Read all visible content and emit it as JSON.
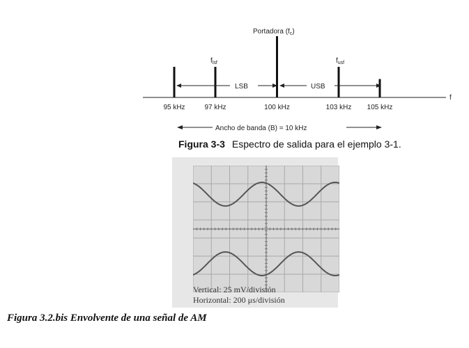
{
  "spectrum": {
    "carrier_label": "Portadora (f",
    "carrier_sub": "c",
    "carrier_label_end": ")",
    "flsf_label": "f",
    "flsf_sub": "lsf",
    "fusf_label": "f",
    "fusf_sub": "usf",
    "lsb_label": "LSB",
    "usb_label": "USB",
    "axis_label": "f",
    "freqs": [
      {
        "label": "95 kHz",
        "value": 95,
        "amp": 0.5
      },
      {
        "label": "97 kHz",
        "value": 97,
        "amp": 0.5
      },
      {
        "label": "100 kHz",
        "value": 100,
        "amp": 1.0
      },
      {
        "label": "103 kHz",
        "value": 103,
        "amp": 0.5
      },
      {
        "label": "105 kHz",
        "value": 105,
        "amp": 0.3
      }
    ],
    "bandwidth_label": "Ancho de banda (B) = 10 kHz"
  },
  "figure_caption": {
    "number": "Figura 3-3",
    "text": "Espectro de salida para el ejemplo 3-1."
  },
  "oscilloscope": {
    "vertical": "Vertical: 25 mV/división",
    "horizontal": "Horizontal: 200 μs/división",
    "grid_color": "#a9a9a9",
    "trace_color": "#555555"
  },
  "caption": "Figura 3.2.bis  Envolvente de una señal de AM"
}
